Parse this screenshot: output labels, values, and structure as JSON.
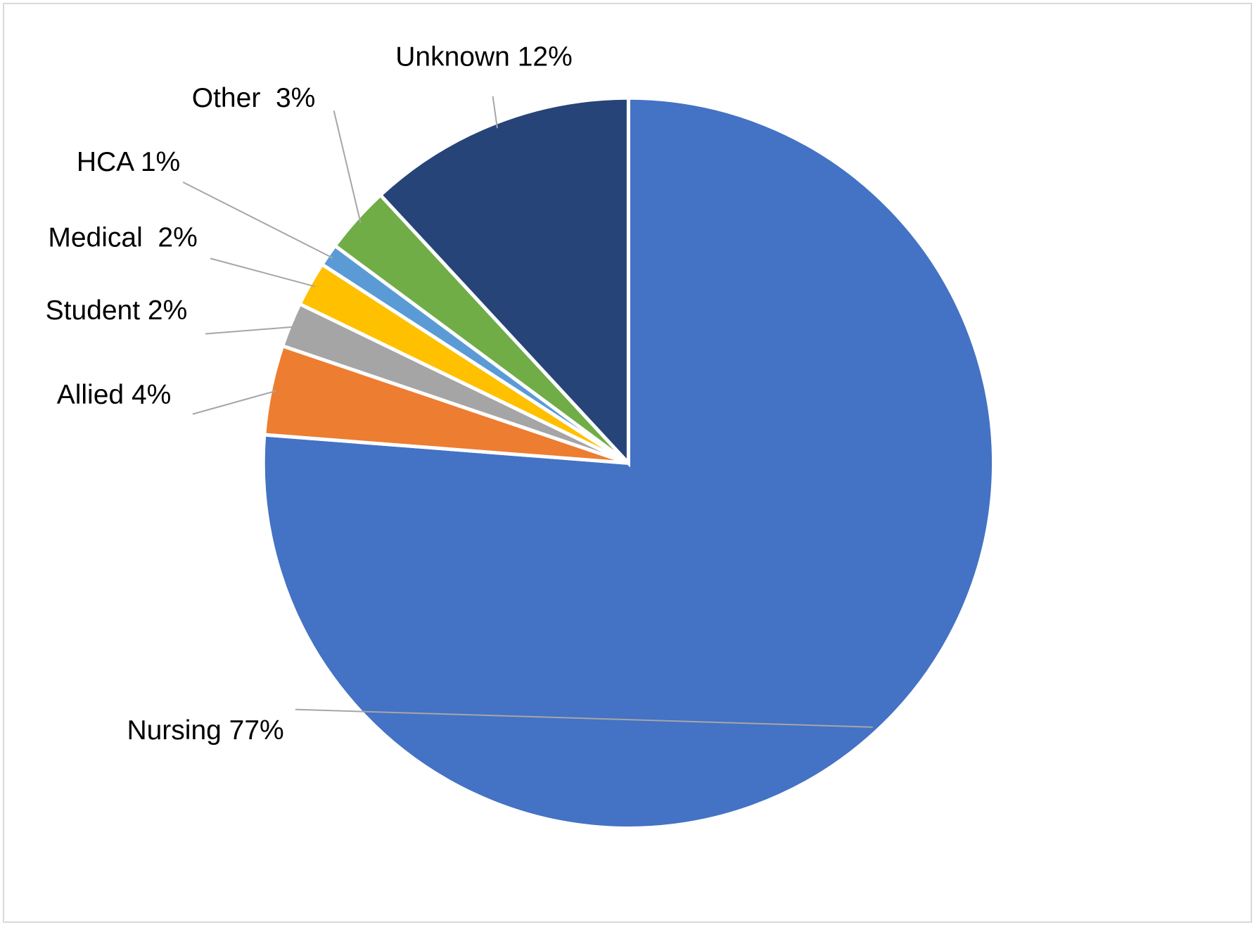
{
  "chart_data": {
    "type": "pie",
    "values": [
      77,
      4,
      2,
      2,
      1,
      3,
      12
    ],
    "value_labels": [
      "Nursing 77%",
      "Allied 4%",
      "Student 2%",
      "Medical  2%",
      "HCA 1%",
      "Other  3%",
      "Unknown 12%"
    ],
    "colors": [
      "#4472c4",
      "#ed7d31",
      "#a5a5a5",
      "#ffc000",
      "#5b9bd5",
      "#70ad47",
      "#264478"
    ]
  }
}
